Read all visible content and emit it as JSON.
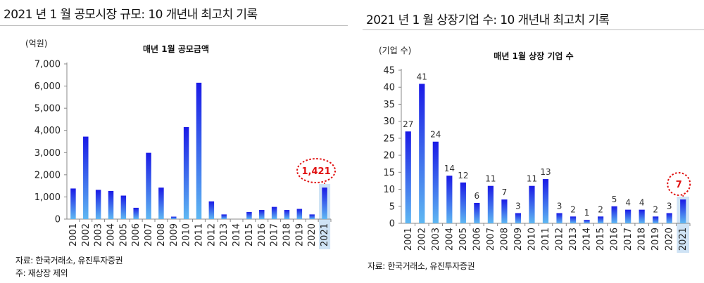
{
  "left": {
    "header": "2021 년 1 월 공모시장 규모: 10 개년내 최고치 기록",
    "unit": "(억원)",
    "source": "자료: 한국거래소, 유진투자증권",
    "note": "주: 재상장 제외"
  },
  "right": {
    "header": "2021 년 1 월 상장기업 수: 10 개년내 최고치 기록",
    "unit": "(기업 수)",
    "source": "자료: 한국거래소, 유진투자증권"
  },
  "colors": {
    "bar_top": "#1a1ae6",
    "bar_bottom": "#5fb8f2",
    "highlight_bg": "#cfe3f5",
    "callout": "#e01010"
  },
  "chart_data": [
    {
      "type": "bar",
      "title": "매년 1월 공모금액",
      "categories": [
        "2001",
        "2002",
        "2003",
        "2004",
        "2005",
        "2006",
        "2007",
        "2008",
        "2009",
        "2010",
        "2011",
        "2012",
        "2013",
        "2014",
        "2015",
        "2016",
        "2017",
        "2018",
        "2019",
        "2020",
        "2021"
      ],
      "values": [
        1380,
        3720,
        1320,
        1270,
        1060,
        510,
        2990,
        1420,
        110,
        4150,
        6150,
        800,
        210,
        0,
        320,
        410,
        550,
        410,
        460,
        210,
        1421
      ],
      "ylim": [
        0,
        7000
      ],
      "yticks": [
        "0",
        "1,000",
        "2,000",
        "3,000",
        "4,000",
        "5,000",
        "6,000",
        "7,000"
      ],
      "highlight_index": 20,
      "callout": "1,421",
      "grid": false
    },
    {
      "type": "bar",
      "title": "매년 1월 상장 기업 수",
      "categories": [
        "2001",
        "2002",
        "2003",
        "2004",
        "2005",
        "2006",
        "2007",
        "2008",
        "2009",
        "2010",
        "2011",
        "2012",
        "2013",
        "2014",
        "2015",
        "2016",
        "2017",
        "2018",
        "2019",
        "2020",
        "2021"
      ],
      "values": [
        27,
        41,
        24,
        14,
        12,
        6,
        11,
        7,
        3,
        11,
        13,
        3,
        2,
        1,
        2,
        5,
        4,
        4,
        2,
        3,
        7
      ],
      "data_labels": [
        "27",
        "41",
        "24",
        "14",
        "12",
        "6",
        "11",
        "7",
        "3",
        "11",
        "13",
        "3",
        "2",
        "1",
        "2",
        "5",
        "4",
        "4",
        "2",
        "3",
        "7"
      ],
      "ylim": [
        0,
        45
      ],
      "yticks": [
        "0",
        "5",
        "10",
        "15",
        "20",
        "25",
        "30",
        "35",
        "40",
        "45"
      ],
      "highlight_index": 20,
      "callout": "7",
      "grid": false
    }
  ]
}
